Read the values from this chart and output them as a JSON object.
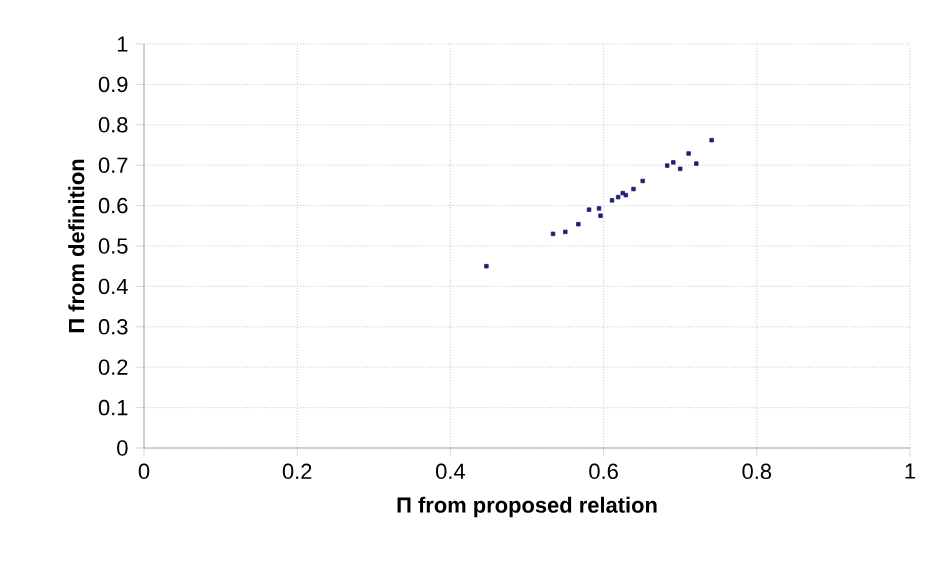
{
  "chart_data": {
    "type": "scatter",
    "xlabel": "Π from proposed relation",
    "ylabel": "Π from definition",
    "xlim": [
      0,
      1
    ],
    "ylim": [
      0,
      1
    ],
    "xticks": [
      0,
      0.2,
      0.4,
      0.6,
      0.8,
      1
    ],
    "yticks": [
      0,
      0.1,
      0.2,
      0.3,
      0.4,
      0.5,
      0.6,
      0.7,
      0.8,
      0.9,
      1
    ],
    "grid": true,
    "marker": "square",
    "series": [
      {
        "color": "#1f1f7a",
        "x": [
          0.447,
          0.534,
          0.55,
          0.567,
          0.581,
          0.594,
          0.596,
          0.611,
          0.619,
          0.625,
          0.629,
          0.639,
          0.651,
          0.683,
          0.691,
          0.7,
          0.711,
          0.721,
          0.741
        ],
        "values": [
          0.45,
          0.53,
          0.535,
          0.554,
          0.59,
          0.593,
          0.575,
          0.613,
          0.621,
          0.631,
          0.626,
          0.641,
          0.661,
          0.699,
          0.707,
          0.691,
          0.729,
          0.704,
          0.762
        ]
      }
    ]
  }
}
